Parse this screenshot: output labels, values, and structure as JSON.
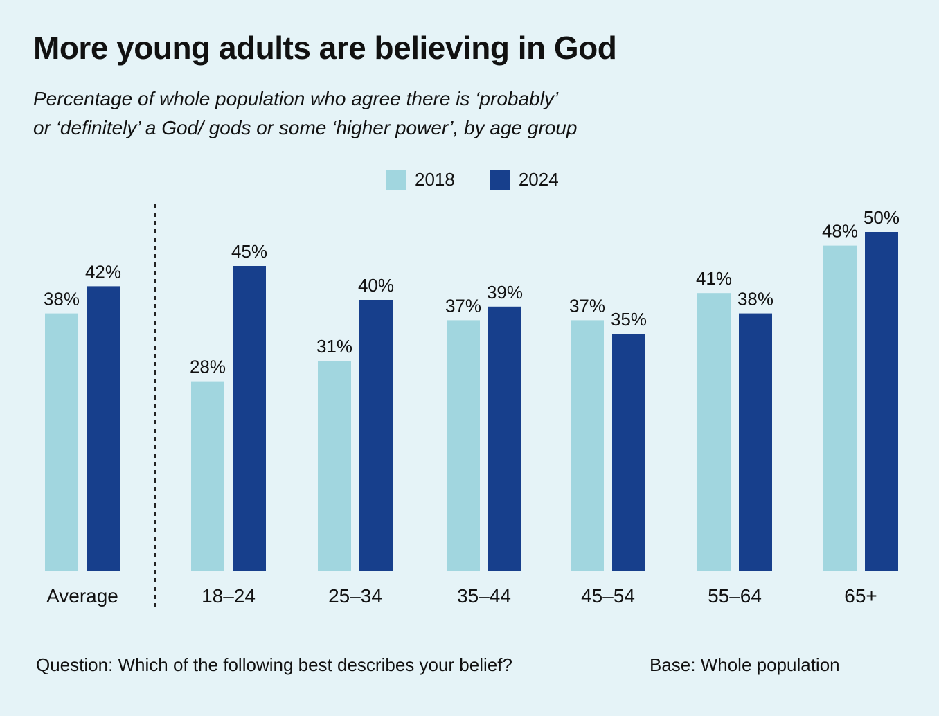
{
  "colors": {
    "background": "#e5f3f7",
    "series_2018": "#a1d6df",
    "series_2024": "#173f8c"
  },
  "header": {
    "title": "More young adults are believing in God",
    "subtitle_line1": "Percentage of whole population who agree there is ‘probably’",
    "subtitle_line2": "or ‘definitely’ a God/ gods or some ‘higher power’, by age group"
  },
  "legend": {
    "items": [
      "2018",
      "2024"
    ]
  },
  "footer": {
    "question": "Question: Which of the following best describes your belief?",
    "base": "Base: Whole population"
  },
  "chart_data": {
    "type": "bar",
    "title": "More young adults are believing in God",
    "categories": [
      "Average",
      "18–24",
      "25–34",
      "35–44",
      "45–54",
      "55–64",
      "65+"
    ],
    "series": [
      {
        "name": "2018",
        "values": [
          38,
          28,
          31,
          37,
          37,
          41,
          48
        ],
        "labels": [
          "38%",
          "28%",
          "31%",
          "37%",
          "37%",
          "41%",
          "48%"
        ]
      },
      {
        "name": "2024",
        "values": [
          42,
          45,
          40,
          39,
          35,
          38,
          50
        ],
        "labels": [
          "42%",
          "45%",
          "40%",
          "39%",
          "35%",
          "38%",
          "50%"
        ]
      }
    ],
    "xlabel": "",
    "ylabel": "",
    "ylim": [
      0,
      50
    ],
    "grid": false,
    "legend_position": "top-center"
  }
}
